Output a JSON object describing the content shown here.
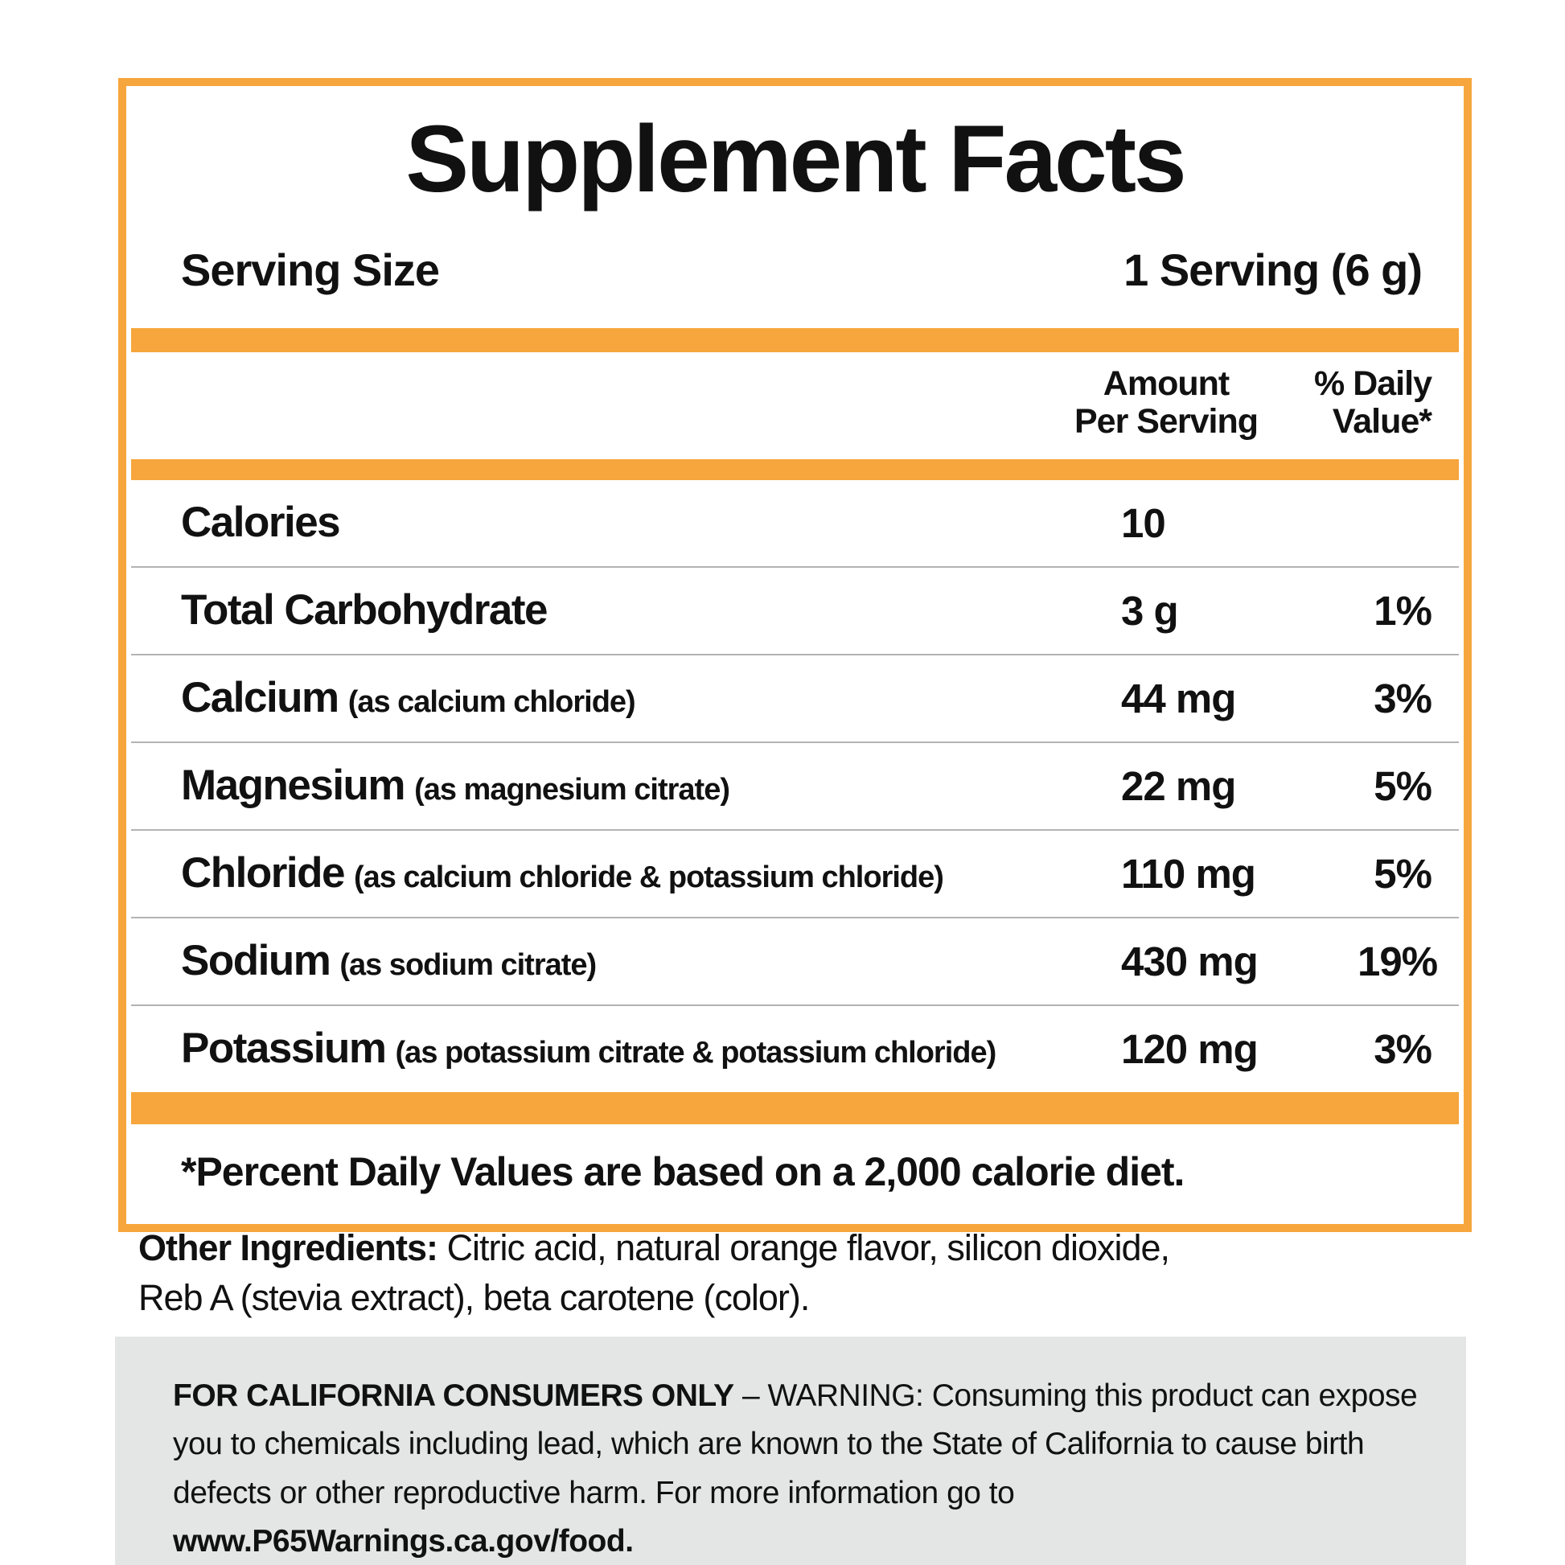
{
  "facts": {
    "title": "Supplement Facts",
    "serving_size_label": "Serving Size",
    "serving_size_value": "1 Serving (6 g)",
    "amount_header": [
      "Amount",
      "Per Serving"
    ],
    "dv_header": [
      "% Daily",
      "Value*"
    ],
    "rows": [
      {
        "name": "Calories",
        "detail": "",
        "amount": "10",
        "dv": ""
      },
      {
        "name": "Total Carbohydrate",
        "detail": "",
        "amount": "3 g",
        "dv": "1%"
      },
      {
        "name": "Calcium",
        "detail": "(as calcium chloride)",
        "amount": "44 mg",
        "dv": "3%"
      },
      {
        "name": "Magnesium",
        "detail": "(as magnesium citrate)",
        "amount": "22 mg",
        "dv": "5%"
      },
      {
        "name": "Chloride",
        "detail": "(as calcium chloride & potassium chloride)",
        "amount": "110 mg",
        "dv": "5%"
      },
      {
        "name": "Sodium",
        "detail": "(as sodium citrate)",
        "amount": "430 mg",
        "dv": "19%"
      },
      {
        "name": "Potassium",
        "detail": "(as potassium citrate & potassium chloride)",
        "amount": "120 mg",
        "dv": "3%"
      }
    ],
    "footnote": "*Percent Daily Values are based on a 2,000 calorie diet."
  },
  "other_ingredients": {
    "label": "Other Ingredients:",
    "line1": "Citric acid, natural orange flavor, silicon dioxide,",
    "line2": "Reb A (stevia extract), beta carotene (color)."
  },
  "california_warning": {
    "heading": "FOR CALIFORNIA CONSUMERS ONLY",
    "body": " – WARNING: Consuming this product can expose you to chemicals including lead, which are known to the State of California to cause birth defects or other reproductive harm. For more information go to ",
    "url": "www.P65Warnings.ca.gov/food."
  },
  "colors": {
    "accent": "#F6A63C",
    "divider": "#B3B3B3",
    "warning_bg": "#E4E6E6",
    "text": "#111111"
  }
}
